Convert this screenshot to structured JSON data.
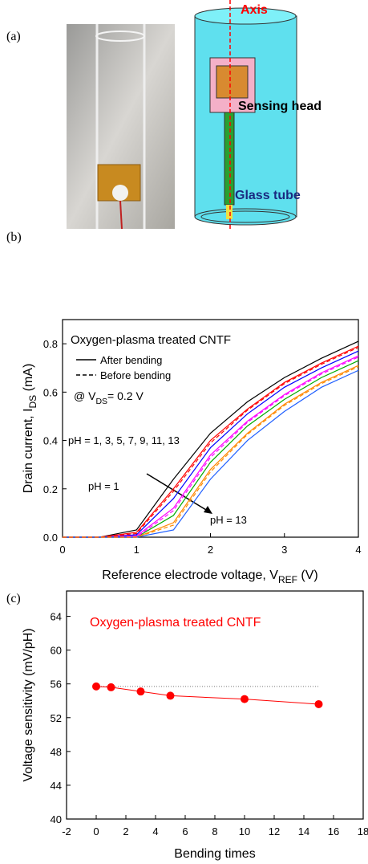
{
  "panel_a": {
    "label": "(a)",
    "axis_label": "Axis",
    "sensing_head": "Sensing head",
    "glass_tube": "Glass tube"
  },
  "chart_data": [
    {
      "type": "line",
      "panel_label": "(b)",
      "title": "Oxygen-plasma treated CNTF",
      "xlabel": {
        "text": "Reference electrode voltage, V",
        "sub": "REF",
        "after": " (V)"
      },
      "ylabel": {
        "text": "Drain current, I",
        "sub": "DS",
        "after": " (mA)"
      },
      "x": [
        0,
        0.5,
        1,
        1.5,
        2,
        2.5,
        3,
        3.5,
        4
      ],
      "xlim": [
        0,
        4
      ],
      "xticks": [
        0,
        1,
        2,
        3,
        4
      ],
      "ylim": [
        0,
        0.9
      ],
      "yticks": [
        {
          "value": 0,
          "label": "0.0"
        },
        0.2,
        0.4,
        0.6,
        0.8
      ],
      "legend": [
        {
          "label": "After bending",
          "dash": false
        },
        {
          "label": "Before bending",
          "dash": true
        }
      ],
      "condition": {
        "text": "@ V",
        "sub": "DS",
        "after": "= 0.2 V"
      },
      "annotations": [
        "pH = 1, 3, 5, 7, 9, 11, 13",
        "pH = 1",
        "pH = 13"
      ],
      "series": [
        {
          "color": "#000000",
          "dash": false,
          "values": [
            0,
            0,
            0.03,
            0.24,
            0.43,
            0.56,
            0.66,
            0.74,
            0.81
          ]
        },
        {
          "color": "#ff0000",
          "dash": false,
          "values": [
            0,
            0,
            0.02,
            0.2,
            0.4,
            0.53,
            0.64,
            0.72,
            0.79
          ]
        },
        {
          "color": "#0000ff",
          "dash": false,
          "values": [
            0,
            0,
            0.01,
            0.16,
            0.37,
            0.51,
            0.62,
            0.7,
            0.77
          ]
        },
        {
          "color": "#ff00ff",
          "dash": false,
          "values": [
            0,
            0,
            0.005,
            0.12,
            0.34,
            0.48,
            0.59,
            0.68,
            0.75
          ]
        },
        {
          "color": "#00aa00",
          "dash": false,
          "values": [
            0,
            0,
            0,
            0.09,
            0.31,
            0.46,
            0.57,
            0.66,
            0.73
          ]
        },
        {
          "color": "#ff8800",
          "dash": false,
          "values": [
            0,
            0,
            0,
            0.06,
            0.28,
            0.43,
            0.55,
            0.64,
            0.71
          ]
        },
        {
          "color": "#1f5fff",
          "dash": false,
          "values": [
            0,
            0,
            0,
            0.03,
            0.24,
            0.4,
            0.52,
            0.62,
            0.69
          ]
        },
        {
          "color": "#ff0000",
          "dash": true,
          "values": [
            0,
            0,
            0.015,
            0.19,
            0.39,
            0.525,
            0.635,
            0.715,
            0.785
          ]
        },
        {
          "color": "#ff00ff",
          "dash": true,
          "values": [
            0,
            0,
            0,
            0.11,
            0.33,
            0.475,
            0.585,
            0.675,
            0.745
          ]
        },
        {
          "color": "#ff8800",
          "dash": true,
          "values": [
            0,
            0,
            0,
            0.05,
            0.27,
            0.425,
            0.545,
            0.635,
            0.705
          ]
        }
      ]
    },
    {
      "type": "scatter",
      "panel_label": "(c)",
      "title": "Oxygen-plasma treated CNTF",
      "xlabel": "Bending times",
      "ylabel": "Voltage sensitivity (mV/pH)",
      "x": [
        0,
        1,
        3,
        5,
        10,
        15
      ],
      "values": [
        55.7,
        55.6,
        55.1,
        54.6,
        54.2,
        53.6
      ],
      "color": "#ff0000",
      "reference_line": 55.7,
      "xlim": [
        -2,
        18
      ],
      "xticks": [
        -2,
        0,
        2,
        4,
        6,
        8,
        10,
        12,
        14,
        16,
        18
      ],
      "ylim": [
        40,
        67
      ],
      "yticks": [
        40,
        44,
        48,
        52,
        56,
        60,
        64
      ]
    }
  ]
}
